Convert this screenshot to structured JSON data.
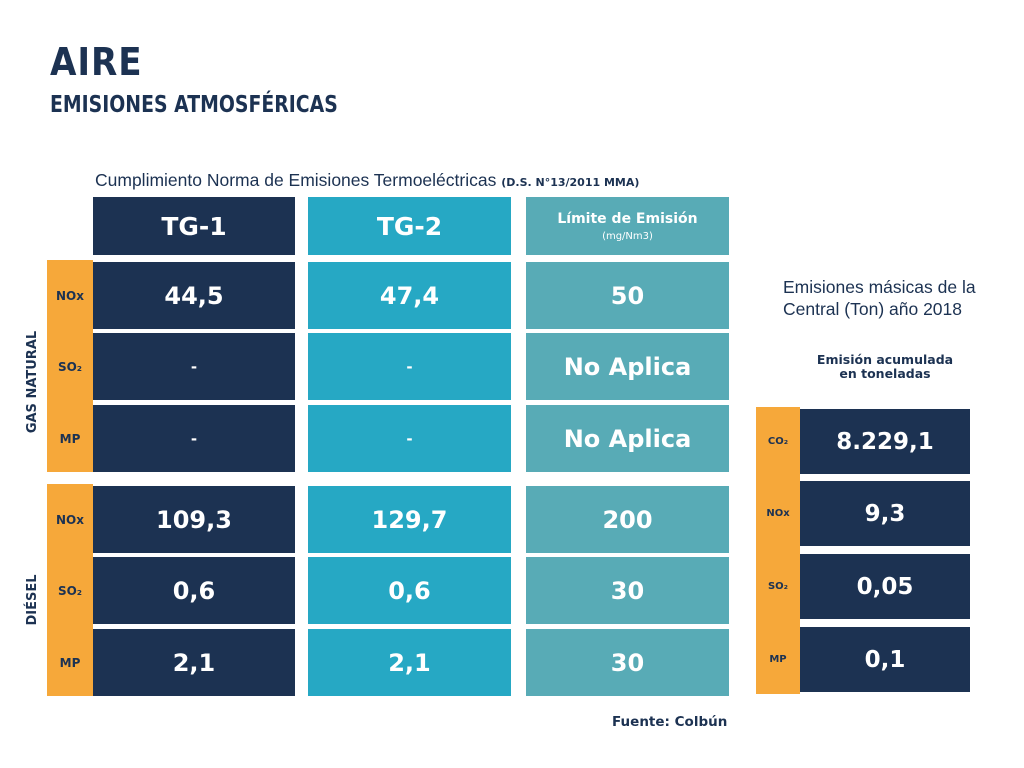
{
  "header": {
    "title": "AIRE",
    "subtitle": "EMISIONES ATMOSFÉRICAS"
  },
  "table": {
    "caption": "Cumplimiento Norma de Emisiones Termoeléctricas",
    "caption_norm": "(D.S. N°13/2011 MMA)",
    "col_tg1": "TG-1",
    "col_tg2": "TG-2",
    "col_limit": "Límite de Emisión",
    "col_limit_unit": "(mg/Nm3)",
    "gas_label": "GAS NATURAL",
    "diesel_label": "DIÉSEL",
    "gas_rows": [
      {
        "pollutant": "NOx",
        "tg1": "44,5",
        "tg2": "47,4",
        "limit": "50"
      },
      {
        "pollutant": "SO₂",
        "tg1": "-",
        "tg2": "-",
        "limit": "No Aplica"
      },
      {
        "pollutant": "MP",
        "tg1": "-",
        "tg2": "-",
        "limit": "No Aplica"
      }
    ],
    "diesel_rows": [
      {
        "pollutant": "NOx",
        "tg1": "109,3",
        "tg2": "129,7",
        "limit": "200"
      },
      {
        "pollutant": "SO₂",
        "tg1": "0,6",
        "tg2": "0,6",
        "limit": "30"
      },
      {
        "pollutant": "MP",
        "tg1": "2,1",
        "tg2": "2,1",
        "limit": "30"
      }
    ]
  },
  "mass": {
    "title": "Emisiones másicas de la Central (Ton) año 2018",
    "header_line1": "Emisión acumulada",
    "header_line2": "en toneladas",
    "rows": [
      {
        "pollutant": "CO₂",
        "value": "8.229,1"
      },
      {
        "pollutant": "NOx",
        "value": "9,3"
      },
      {
        "pollutant": "SO₂",
        "value": "0,05"
      },
      {
        "pollutant": "MP",
        "value": "0,1"
      }
    ]
  },
  "source": "Fuente: Colbún",
  "colors": {
    "navy": "#1c3252",
    "teal": "#26a8c4",
    "limit": "#58abb6",
    "orange": "#f6a83a"
  }
}
